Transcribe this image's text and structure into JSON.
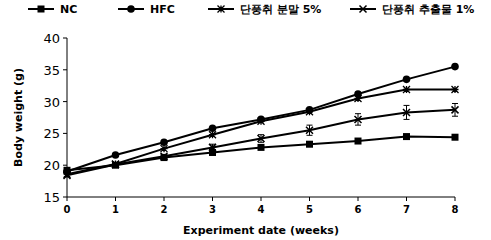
{
  "chart_data": {
    "type": "line",
    "x_label": "Experiment date (weeks)",
    "y_label": "Body weight (g)",
    "x": [
      0,
      1,
      2,
      3,
      4,
      5,
      6,
      7,
      8
    ],
    "xlim": [
      0,
      8
    ],
    "xticks": [
      0,
      1,
      2,
      3,
      4,
      5,
      6,
      7,
      8
    ],
    "ylim": [
      15,
      40
    ],
    "yticks": [
      15,
      20,
      25,
      30,
      35,
      40
    ],
    "grid": false,
    "legend": "top",
    "series": [
      {
        "name": "NC",
        "color": "#000000",
        "marker": "square",
        "values": [
          19.2,
          20.0,
          21.2,
          22.0,
          22.8,
          23.3,
          23.8,
          24.5,
          24.4
        ]
      },
      {
        "name": "HFC",
        "color": "#000000",
        "marker": "circle",
        "values": [
          19.0,
          21.6,
          23.6,
          25.8,
          27.2,
          28.7,
          31.2,
          33.5,
          35.5
        ]
      },
      {
        "name": "단풍취 분말 5%",
        "color": "#000000",
        "marker": "asterisk",
        "values": [
          18.6,
          20.2,
          22.6,
          24.8,
          26.9,
          28.4,
          30.5,
          31.9,
          31.9
        ]
      },
      {
        "name": "단풍취 추출물 1%",
        "color": "#000000",
        "marker": "x",
        "values": [
          18.4,
          20.1,
          21.4,
          22.8,
          24.2,
          25.5,
          27.2,
          28.3,
          28.7
        ],
        "errors": [
          0.2,
          0.3,
          0.3,
          0.5,
          0.6,
          0.8,
          0.9,
          1.1,
          1.0
        ]
      }
    ]
  }
}
